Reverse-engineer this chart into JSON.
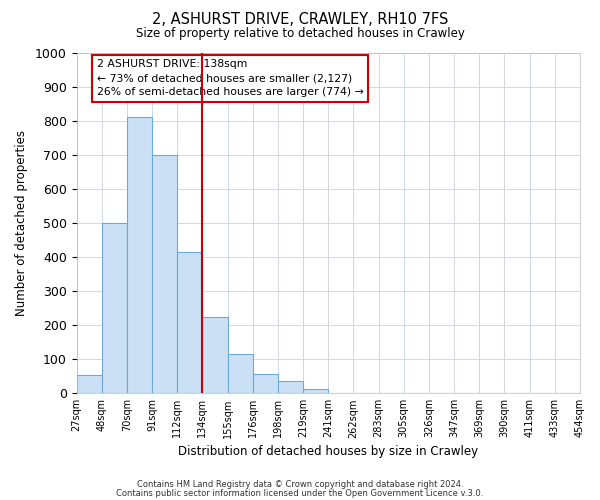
{
  "title": "2, ASHURST DRIVE, CRAWLEY, RH10 7FS",
  "subtitle": "Size of property relative to detached houses in Crawley",
  "xlabel": "Distribution of detached houses by size in Crawley",
  "ylabel": "Number of detached properties",
  "bar_color": "#cce0f5",
  "bar_edge_color": "#6aaad4",
  "bin_labels": [
    "27sqm",
    "48sqm",
    "70sqm",
    "91sqm",
    "112sqm",
    "134sqm",
    "155sqm",
    "176sqm",
    "198sqm",
    "219sqm",
    "241sqm",
    "262sqm",
    "283sqm",
    "305sqm",
    "326sqm",
    "347sqm",
    "369sqm",
    "390sqm",
    "411sqm",
    "433sqm",
    "454sqm"
  ],
  "bar_heights": [
    55,
    500,
    810,
    700,
    415,
    225,
    115,
    57,
    35,
    13,
    0,
    0,
    0,
    0,
    0,
    0,
    0,
    0,
    0,
    0
  ],
  "ylim": [
    0,
    1000
  ],
  "yticks": [
    0,
    100,
    200,
    300,
    400,
    500,
    600,
    700,
    800,
    900,
    1000
  ],
  "annotation_title": "2 ASHURST DRIVE: 138sqm",
  "annotation_line1": "← 73% of detached houses are smaller (2,127)",
  "annotation_line2": "26% of semi-detached houses are larger (774) →",
  "annotation_box_color": "#ffffff",
  "annotation_box_edge": "#cc0000",
  "vline_color": "#cc0000",
  "grid_color": "#ccd9e8",
  "footer1": "Contains HM Land Registry data © Crown copyright and database right 2024.",
  "footer2": "Contains public sector information licensed under the Open Government Licence v.3.0."
}
